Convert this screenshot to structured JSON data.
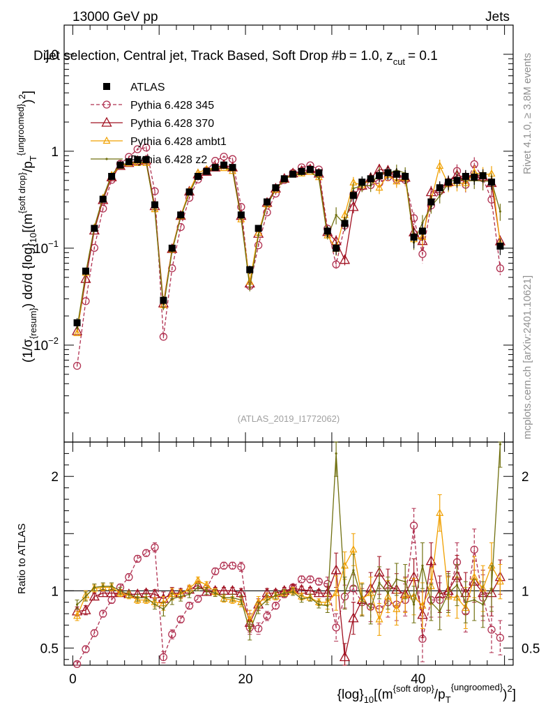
{
  "chart_data": {
    "type": "line",
    "header_left": "13000 GeV pp",
    "header_right": "Jets",
    "title": "Dijet selection, Central jet, Track Based, Soft Drop #b = 1.0, z_cut = 0.1",
    "title_parts": {
      "main": "Dijet selection, Central jet, Track Based, Soft Drop #b",
      "beta_eq": "= 1.0, z",
      "zcut_sub": "cut",
      "zcut_eq": "= 0.1"
    },
    "side_label_top": "Rivet 4.1.0, ≥ 3.8M events",
    "side_label_bottom": "mcplots.cern.ch [arXiv:2401.10621]",
    "analysis_id": "(ATLAS_2019_I1772062)",
    "ylabel": "(1/σ_{resum}) dσ/d {log}_10[(m^{soft drop}/p_T^{ungroomed})^2]",
    "ylabel_parts": {
      "a": "(1/σ",
      "b": "{resum}",
      "c": ") dσ/d {log}",
      "d": "10",
      "e": "[(m",
      "f": "{soft drop}",
      "g": "/p",
      "h": "T",
      "i": "{ungroomed}",
      "j": ")",
      "k": "2",
      "l": "]"
    },
    "xlabel": "{log}_10[(m^{soft drop}/p_T^{ungroomed})^2]",
    "xlabel_parts": {
      "a": "{log}",
      "b": "10",
      "c": "[(m",
      "d": "{soft drop}",
      "e": "/p",
      "f": "T",
      "g": "{ungroomed}",
      "h": ")",
      "i": "2",
      "j": "]"
    },
    "ratio_ylabel": "Ratio to ATLAS",
    "xlim": [
      -1,
      51
    ],
    "ylim": [
      0.001,
      20
    ],
    "yscale": "log",
    "ratio_ylim": [
      0.35,
      2.3
    ],
    "x_ticks": [
      0,
      20,
      40
    ],
    "y_ticks_main": [
      {
        "v": 10,
        "label": "10"
      },
      {
        "v": 1,
        "label": "1"
      },
      {
        "v": 0.1,
        "label": "10^{-1}",
        "base": "10",
        "exp": "−1"
      },
      {
        "v": 0.01,
        "label": "10^{-2}",
        "base": "10",
        "exp": "−2"
      }
    ],
    "y_ticks_ratio": [
      {
        "v": 2,
        "label": "2"
      },
      {
        "v": 1,
        "label": "1"
      },
      {
        "v": 0.5,
        "label": "0.5"
      }
    ],
    "x": [
      0.5,
      1.5,
      2.5,
      3.5,
      4.5,
      5.5,
      6.5,
      7.5,
      8.5,
      9.5,
      10.5,
      11.5,
      12.5,
      13.5,
      14.5,
      15.5,
      16.5,
      17.5,
      18.5,
      19.5,
      20.5,
      21.5,
      22.5,
      23.5,
      24.5,
      25.5,
      26.5,
      27.5,
      28.5,
      29.5,
      30.5,
      31.5,
      32.5,
      33.5,
      34.5,
      35.5,
      36.5,
      37.5,
      38.5,
      39.5,
      40.5,
      41.5,
      42.5,
      43.5,
      44.5,
      45.5,
      46.5,
      47.5,
      48.5,
      49.5
    ],
    "series": [
      {
        "name": "ATLAS",
        "color": "#000000",
        "marker": "square",
        "values": [
          0.017,
          0.058,
          0.16,
          0.32,
          0.55,
          0.72,
          0.78,
          0.82,
          0.82,
          0.28,
          0.029,
          0.1,
          0.22,
          0.38,
          0.55,
          0.62,
          0.68,
          0.72,
          0.68,
          0.22,
          0.06,
          0.16,
          0.3,
          0.42,
          0.52,
          0.58,
          0.62,
          0.65,
          0.6,
          0.15,
          0.1,
          0.18,
          0.35,
          0.48,
          0.52,
          0.56,
          0.6,
          0.58,
          0.55,
          0.13,
          0.15,
          0.3,
          0.42,
          0.48,
          0.5,
          0.55,
          0.54,
          0.56,
          0.48,
          0.105
        ],
        "errors": [
          0.002,
          0.005,
          0.01,
          0.02,
          0.03,
          0.03,
          0.03,
          0.03,
          0.03,
          0.02,
          0.003,
          0.008,
          0.01,
          0.02,
          0.03,
          0.03,
          0.03,
          0.03,
          0.03,
          0.015,
          0.006,
          0.01,
          0.02,
          0.02,
          0.03,
          0.03,
          0.03,
          0.03,
          0.03,
          0.02,
          0.015,
          0.03,
          0.05,
          0.07,
          0.08,
          0.08,
          0.09,
          0.09,
          0.09,
          0.03,
          0.03,
          0.05,
          0.07,
          0.08,
          0.08,
          0.09,
          0.09,
          0.09,
          0.08,
          0.02
        ]
      },
      {
        "name": "Pythia 6.428 345",
        "color": "#b03050",
        "marker": "circle",
        "dash": true,
        "ratio": [
          0.36,
          0.49,
          0.63,
          0.8,
          0.92,
          1.03,
          1.12,
          1.28,
          1.33,
          1.38,
          0.42,
          0.62,
          0.75,
          0.87,
          0.93,
          1.02,
          1.17,
          1.22,
          1.22,
          1.21,
          0.68,
          0.67,
          0.78,
          0.87,
          0.97,
          1.03,
          1.1,
          1.1,
          1.08,
          1.06,
          0.68,
          0.95,
          1.02,
          0.9,
          0.86,
          0.84,
          0.9,
          0.88,
          0.92,
          1.57,
          0.58,
          0.92,
          0.92,
          0.97,
          1.25,
          0.82,
          1.36,
          0.94,
          0.66,
          0.59
        ],
        "rerr": [
          0.02,
          0.03,
          0.03,
          0.03,
          0.03,
          0.03,
          0.03,
          0.03,
          0.03,
          0.04,
          0.05,
          0.04,
          0.03,
          0.03,
          0.03,
          0.03,
          0.03,
          0.03,
          0.03,
          0.04,
          0.06,
          0.05,
          0.04,
          0.03,
          0.03,
          0.03,
          0.03,
          0.03,
          0.03,
          0.06,
          0.12,
          0.1,
          0.12,
          0.12,
          0.13,
          0.13,
          0.13,
          0.14,
          0.14,
          0.15,
          0.2,
          0.15,
          0.15,
          0.16,
          0.17,
          0.18,
          0.18,
          0.2,
          0.2,
          0.15
        ]
      },
      {
        "name": "Pythia 6.428 370",
        "color": "#a01020",
        "marker": "triangle",
        "ratio": [
          0.82,
          0.83,
          0.95,
          0.98,
          0.98,
          0.98,
          0.97,
          0.97,
          0.98,
          0.97,
          0.93,
          0.98,
          0.98,
          1.01,
          1.05,
          0.99,
          1.0,
          1.0,
          1.0,
          0.98,
          0.72,
          0.88,
          0.98,
          0.98,
          1.0,
          1.02,
          1.01,
          1.0,
          0.98,
          0.98,
          1.18,
          0.42,
          0.76,
          0.92,
          1.02,
          1.16,
          1.05,
          1.01,
          0.97,
          1.12,
          0.79,
          1.26,
          0.97,
          1.0,
          1.13,
          0.98,
          1.08,
          0.98,
          0.98,
          1.12
        ],
        "rerr": [
          0.04,
          0.04,
          0.03,
          0.03,
          0.03,
          0.03,
          0.03,
          0.03,
          0.03,
          0.04,
          0.06,
          0.05,
          0.04,
          0.03,
          0.03,
          0.03,
          0.03,
          0.03,
          0.03,
          0.04,
          0.08,
          0.05,
          0.04,
          0.03,
          0.03,
          0.03,
          0.03,
          0.03,
          0.03,
          0.06,
          0.15,
          0.12,
          0.14,
          0.14,
          0.14,
          0.14,
          0.14,
          0.14,
          0.15,
          0.16,
          0.2,
          0.16,
          0.16,
          0.17,
          0.18,
          0.18,
          0.18,
          0.2,
          0.2,
          0.15
        ]
      },
      {
        "name": "Pythia 6.428 ambt1",
        "color": "#f0a000",
        "marker": "triangle-small",
        "ratio": [
          0.78,
          0.96,
          1.02,
          1.03,
          1.03,
          0.98,
          0.96,
          0.92,
          0.92,
          0.9,
          0.89,
          0.97,
          0.97,
          1.02,
          1.09,
          1.05,
          0.99,
          0.93,
          0.92,
          0.9,
          0.75,
          0.9,
          0.94,
          0.95,
          0.98,
          1.0,
          0.95,
          0.94,
          0.9,
          0.9,
          0.98,
          1.22,
          1.36,
          0.93,
          0.98,
          0.75,
          0.95,
          0.84,
          0.96,
          0.95,
          0.87,
          1.04,
          1.68,
          0.95,
          0.94,
          0.85,
          1.12,
          1.02,
          1.22,
          1.08
        ],
        "rerr": [
          0.04,
          0.04,
          0.03,
          0.03,
          0.03,
          0.03,
          0.03,
          0.03,
          0.03,
          0.04,
          0.06,
          0.05,
          0.04,
          0.03,
          0.03,
          0.03,
          0.03,
          0.03,
          0.03,
          0.04,
          0.08,
          0.05,
          0.04,
          0.03,
          0.03,
          0.03,
          0.03,
          0.03,
          0.03,
          0.06,
          0.15,
          0.12,
          0.14,
          0.14,
          0.14,
          0.14,
          0.14,
          0.14,
          0.15,
          0.16,
          0.2,
          0.16,
          0.16,
          0.17,
          0.18,
          0.18,
          0.18,
          0.2,
          0.2,
          0.15
        ]
      },
      {
        "name": "Pythia 6.428 z2",
        "color": "#707010",
        "marker": "dot",
        "ratio": [
          0.88,
          0.95,
          1.03,
          1.04,
          1.04,
          1.0,
          0.97,
          0.94,
          0.94,
          0.88,
          0.84,
          0.93,
          0.95,
          0.97,
          1.03,
          1.0,
          0.98,
          0.94,
          0.94,
          0.92,
          0.65,
          0.85,
          0.92,
          0.96,
          0.98,
          0.99,
          0.93,
          0.94,
          0.88,
          0.87,
          2.2,
          0.98,
          1.18,
          0.92,
          0.85,
          1.07,
          0.98,
          1.1,
          1.08,
          0.88,
          1.22,
          0.9,
          0.82,
          0.98,
          1.05,
          0.9,
          0.92,
          0.88,
          1.02,
          2.28
        ],
        "rerr": [
          0.04,
          0.04,
          0.03,
          0.03,
          0.03,
          0.03,
          0.03,
          0.03,
          0.03,
          0.04,
          0.06,
          0.05,
          0.04,
          0.03,
          0.03,
          0.03,
          0.03,
          0.03,
          0.03,
          0.04,
          0.08,
          0.05,
          0.04,
          0.03,
          0.03,
          0.03,
          0.03,
          0.03,
          0.03,
          0.06,
          0.2,
          0.14,
          0.14,
          0.14,
          0.14,
          0.14,
          0.14,
          0.14,
          0.15,
          0.16,
          0.2,
          0.16,
          0.16,
          0.17,
          0.18,
          0.18,
          0.18,
          0.2,
          0.2,
          0.2
        ]
      }
    ]
  }
}
